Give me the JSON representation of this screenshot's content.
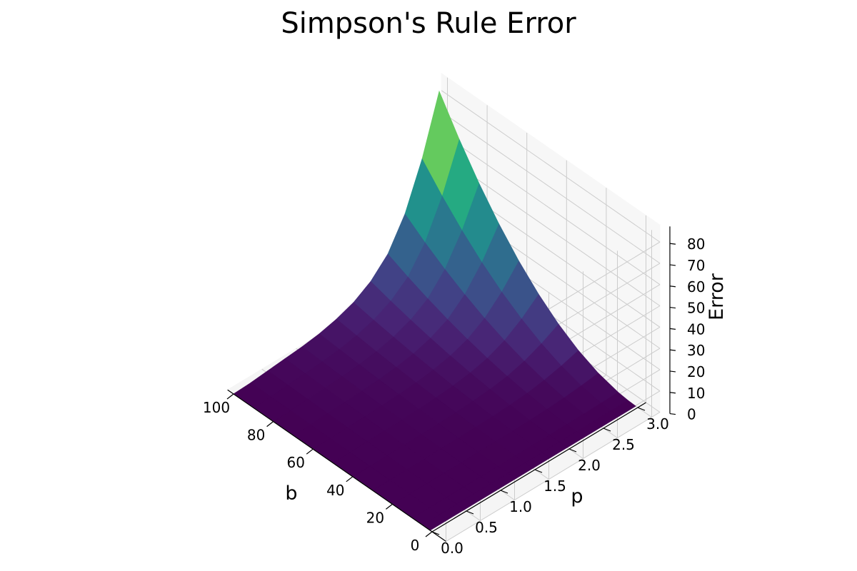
{
  "chart_data": {
    "type": "surface",
    "title": "Simpson's Rule Error",
    "xlabel": "b",
    "ylabel": "p",
    "zlabel": "Error",
    "colormap": "viridis",
    "xlim": [
      0,
      100
    ],
    "ylim": [
      0,
      3
    ],
    "zlim": [
      0,
      87
    ],
    "xticks": [
      "0",
      "20",
      "40",
      "60",
      "80",
      "100"
    ],
    "yticks": [
      "0.0",
      "0.5",
      "1.0",
      "1.5",
      "2.0",
      "2.5",
      "3.0"
    ],
    "zticks": [
      "0",
      "10",
      "20",
      "30",
      "40",
      "50",
      "60",
      "70",
      "80"
    ],
    "b_values": [
      1,
      5,
      10,
      20,
      30,
      40,
      50,
      60,
      70,
      80,
      90,
      100
    ],
    "p_values": [
      0.0,
      0.25,
      0.5,
      0.75,
      1.0,
      1.25,
      1.5,
      1.75,
      2.0,
      2.25,
      2.5,
      2.75,
      3.0
    ],
    "error_at_b100": [
      0.05,
      0.4,
      1.2,
      2.0,
      2.8,
      4.0,
      6.0,
      9.0,
      14.0,
      22.0,
      36.0,
      57.0,
      84.0
    ],
    "grid": true,
    "colors": {
      "low": "#440154",
      "mid": "#21918c",
      "high": "#fde725"
    }
  }
}
